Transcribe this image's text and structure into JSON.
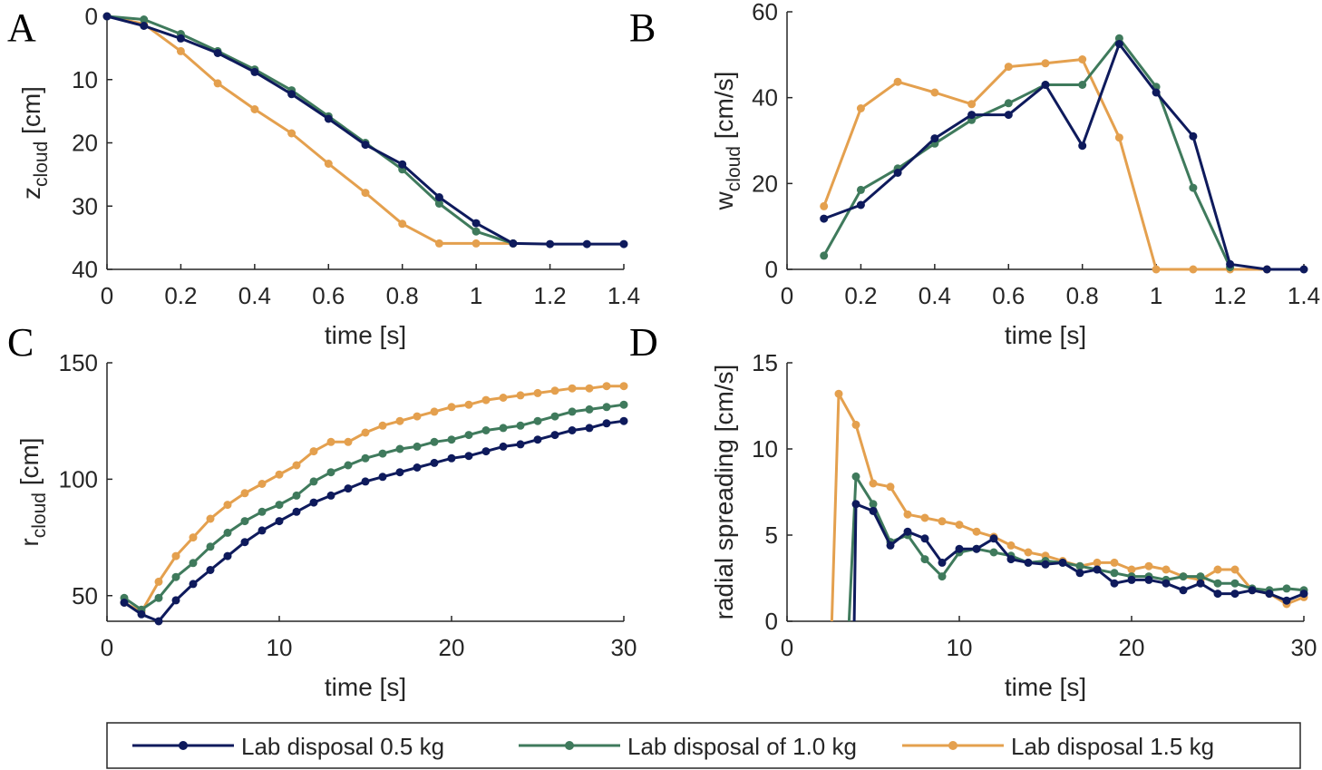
{
  "colors": {
    "series_0_5": "#0e1a5c",
    "series_1_0": "#3f7a5c",
    "series_1_5": "#e4a04e"
  },
  "legend": {
    "entries": [
      "Lab disposal 0.5 kg",
      "Lab disposal of 1.0 kg",
      "Lab disposal 1.5 kg"
    ]
  },
  "chart_data": [
    {
      "panel": "A",
      "type": "line",
      "xlabel": "time [s]",
      "ylabel_main": "z",
      "ylabel_sub": "cloud",
      "ylabel_unit": "[cm]",
      "xlim": [
        0,
        1.4
      ],
      "ylim": [
        0,
        40
      ],
      "y_reversed": true,
      "xticks": [
        0,
        0.2,
        0.4,
        0.6,
        0.8,
        1,
        1.2,
        1.4
      ],
      "xtick_labels": [
        "0",
        "0.2",
        "0.4",
        "0.6",
        "0.8",
        "1",
        "1.2",
        "1.4"
      ],
      "yticks": [
        0,
        10,
        20,
        30,
        40
      ],
      "ytick_labels": [
        "0",
        "10",
        "20",
        "30",
        "40"
      ],
      "series": [
        {
          "name": "Lab disposal 0.5 kg",
          "color": "#0e1a5c",
          "x": [
            0,
            0.1,
            0.2,
            0.3,
            0.4,
            0.5,
            0.6,
            0.7,
            0.8,
            0.9,
            1.0,
            1.1,
            1.2,
            1.3,
            1.4
          ],
          "y": [
            0,
            1.5,
            3.5,
            5.8,
            8.8,
            12.3,
            16.2,
            20.3,
            23.4,
            28.6,
            32.7,
            35.9,
            36,
            36,
            36
          ]
        },
        {
          "name": "Lab disposal of 1.0 kg",
          "color": "#3f7a5c",
          "x": [
            0,
            0.1,
            0.2,
            0.3,
            0.4,
            0.5,
            0.6,
            0.7,
            0.8,
            0.9,
            1.0,
            1.1
          ],
          "y": [
            0,
            0.5,
            2.8,
            5.5,
            8.4,
            11.7,
            15.8,
            20.0,
            24.2,
            29.6,
            34.0,
            35.9
          ]
        },
        {
          "name": "Lab disposal 1.5 kg",
          "color": "#e4a04e",
          "x": [
            0,
            0.1,
            0.2,
            0.3,
            0.4,
            0.5,
            0.6,
            0.7,
            0.8,
            0.9,
            1.0,
            1.1
          ],
          "y": [
            0,
            1.2,
            5.5,
            10.6,
            14.7,
            18.5,
            23.3,
            27.9,
            32.8,
            35.9,
            35.9,
            35.9
          ]
        }
      ]
    },
    {
      "panel": "B",
      "type": "line",
      "xlabel": "time [s]",
      "ylabel_main": "w",
      "ylabel_sub": "cloud",
      "ylabel_unit": "[cm/s]",
      "xlim": [
        0,
        1.4
      ],
      "ylim": [
        0,
        60
      ],
      "y_reversed": false,
      "xticks": [
        0,
        0.2,
        0.4,
        0.6,
        0.8,
        1,
        1.2,
        1.4
      ],
      "xtick_labels": [
        "0",
        "0.2",
        "0.4",
        "0.6",
        "0.8",
        "1",
        "1.2",
        "1.4"
      ],
      "yticks": [
        0,
        20,
        40,
        60
      ],
      "ytick_labels": [
        "0",
        "20",
        "40",
        "60"
      ],
      "series": [
        {
          "name": "Lab disposal 0.5 kg",
          "color": "#0e1a5c",
          "x": [
            0.1,
            0.2,
            0.3,
            0.4,
            0.5,
            0.6,
            0.7,
            0.8,
            0.9,
            1.0,
            1.1,
            1.2,
            1.3,
            1.4
          ],
          "y": [
            11.8,
            15.0,
            22.5,
            30.5,
            36.0,
            36.0,
            43.0,
            28.8,
            52.5,
            41.2,
            31.0,
            1.2,
            0,
            0
          ]
        },
        {
          "name": "Lab disposal of 1.0 kg",
          "color": "#3f7a5c",
          "x": [
            0.1,
            0.2,
            0.3,
            0.4,
            0.5,
            0.6,
            0.7,
            0.8,
            0.9,
            1.0,
            1.1,
            1.2
          ],
          "y": [
            3.2,
            18.5,
            23.5,
            29.3,
            34.8,
            38.7,
            43.0,
            43.0,
            53.8,
            42.5,
            19.0,
            0.5
          ]
        },
        {
          "name": "Lab disposal 1.5 kg",
          "color": "#e4a04e",
          "x": [
            0.1,
            0.2,
            0.3,
            0.4,
            0.5,
            0.6,
            0.7,
            0.8,
            0.9,
            1.0,
            1.1,
            1.2,
            1.3
          ],
          "y": [
            14.7,
            37.5,
            43.7,
            41.2,
            38.5,
            47.2,
            48.0,
            48.9,
            30.7,
            0,
            0,
            0,
            0
          ]
        }
      ]
    },
    {
      "panel": "C",
      "type": "line",
      "xlabel": "time [s]",
      "ylabel_main": "r",
      "ylabel_sub": "cloud",
      "ylabel_unit": "[cm]",
      "xlim": [
        0,
        30
      ],
      "ylim": [
        39,
        150
      ],
      "y_reversed": false,
      "xticks": [
        0,
        10,
        20,
        30
      ],
      "xtick_labels": [
        "0",
        "10",
        "20",
        "30"
      ],
      "yticks": [
        50,
        100,
        150
      ],
      "ytick_labels": [
        "50",
        "100",
        "150"
      ],
      "series": [
        {
          "name": "Lab disposal 0.5 kg",
          "color": "#0e1a5c",
          "x": [
            1,
            2,
            3,
            4,
            5,
            6,
            7,
            8,
            9,
            10,
            11,
            12,
            13,
            14,
            15,
            16,
            17,
            18,
            19,
            20,
            21,
            22,
            23,
            24,
            25,
            26,
            27,
            28,
            29,
            30
          ],
          "y": [
            47,
            42,
            39,
            48,
            55,
            61,
            67,
            73,
            78,
            82,
            86,
            90,
            93,
            96,
            99,
            101,
            103,
            105,
            107,
            109,
            110,
            112,
            114,
            115,
            117,
            119,
            121,
            122,
            124,
            125
          ]
        },
        {
          "name": "Lab disposal of 1.0 kg",
          "color": "#3f7a5c",
          "x": [
            1,
            2,
            3,
            4,
            5,
            6,
            7,
            8,
            9,
            10,
            11,
            12,
            13,
            14,
            15,
            16,
            17,
            18,
            19,
            20,
            21,
            22,
            23,
            24,
            25,
            26,
            27,
            28,
            29,
            30
          ],
          "y": [
            49,
            44,
            49,
            58,
            64,
            71,
            77,
            82,
            86,
            89,
            93,
            99,
            103,
            106,
            109,
            111,
            113,
            114,
            116,
            117,
            119,
            121,
            122,
            123,
            125,
            127,
            129,
            130,
            131,
            132
          ]
        },
        {
          "name": "Lab disposal 1.5 kg",
          "color": "#e4a04e",
          "x": [
            1,
            2,
            3,
            4,
            5,
            6,
            7,
            8,
            9,
            10,
            11,
            12,
            13,
            14,
            15,
            16,
            17,
            18,
            19,
            20,
            21,
            22,
            23,
            24,
            25,
            26,
            27,
            28,
            29,
            30
          ],
          "y": [
            47,
            43,
            56,
            67,
            75,
            83,
            89,
            94,
            98,
            102,
            106,
            112,
            116,
            116,
            120,
            123,
            125,
            127,
            129,
            131,
            132,
            134,
            135,
            136,
            137,
            138,
            139,
            139,
            140,
            140
          ]
        }
      ]
    },
    {
      "panel": "D",
      "type": "line",
      "xlabel": "time [s]",
      "ylabel": "radial spreading [cm/s]",
      "xlim": [
        0,
        30
      ],
      "ylim": [
        0,
        15
      ],
      "y_reversed": false,
      "xticks": [
        0,
        10,
        20,
        30
      ],
      "xtick_labels": [
        "0",
        "10",
        "20",
        "30"
      ],
      "yticks": [
        0,
        5,
        10,
        15
      ],
      "ytick_labels": [
        "0",
        "5",
        "10",
        "15"
      ],
      "series": [
        {
          "name": "Lab disposal 0.5 kg",
          "color": "#0e1a5c",
          "x": [
            4,
            5,
            6,
            7,
            8,
            9,
            10,
            11,
            12,
            13,
            14,
            15,
            16,
            17,
            18,
            19,
            20,
            21,
            22,
            23,
            24,
            25,
            26,
            27,
            28,
            29,
            30
          ],
          "y": [
            6.8,
            6.4,
            4.4,
            5.2,
            4.8,
            3.4,
            4.2,
            4.2,
            4.8,
            3.6,
            3.4,
            3.3,
            3.4,
            2.8,
            3.0,
            2.2,
            2.4,
            2.4,
            2.2,
            1.8,
            2.2,
            1.6,
            1.6,
            1.8,
            1.6,
            1.2,
            1.6
          ],
          "drop_to_zero": [
            3.9,
            0
          ]
        },
        {
          "name": "Lab disposal of 1.0 kg",
          "color": "#3f7a5c",
          "x": [
            4,
            5,
            6,
            7,
            8,
            9,
            10,
            11,
            12,
            13,
            14,
            15,
            16,
            17,
            18,
            19,
            20,
            21,
            22,
            23,
            24,
            25,
            26,
            27,
            28,
            29,
            30
          ],
          "y": [
            8.4,
            6.8,
            4.6,
            5.0,
            3.6,
            2.6,
            4.0,
            4.2,
            4.0,
            3.8,
            3.4,
            3.5,
            3.4,
            3.2,
            3.0,
            2.8,
            2.6,
            2.6,
            2.4,
            2.6,
            2.6,
            2.2,
            2.2,
            1.9,
            1.8,
            1.9,
            1.8
          ],
          "drop_to_zero": [
            3.6,
            0
          ]
        },
        {
          "name": "Lab disposal 1.5 kg",
          "color": "#e4a04e",
          "x": [
            3,
            4,
            5,
            6,
            7,
            8,
            9,
            10,
            11,
            12,
            13,
            14,
            15,
            16,
            17,
            18,
            19,
            20,
            21,
            22,
            23,
            24,
            25,
            26,
            27,
            28,
            29,
            30
          ],
          "y": [
            13.2,
            11.4,
            8.0,
            7.8,
            6.2,
            6.0,
            5.8,
            5.6,
            5.2,
            4.9,
            4.4,
            4.0,
            3.8,
            3.5,
            3.2,
            3.4,
            3.4,
            3.0,
            3.2,
            3.0,
            2.6,
            2.4,
            3.0,
            3.0,
            1.8,
            1.6,
            1.0,
            1.4
          ],
          "drop_to_zero": [
            2.6,
            0
          ]
        }
      ]
    }
  ]
}
